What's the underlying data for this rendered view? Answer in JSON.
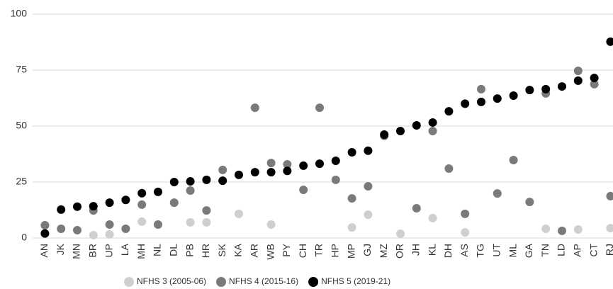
{
  "chart_data": {
    "type": "scatter",
    "categories": [
      "AN",
      "JK",
      "MN",
      "BR",
      "UP",
      "LA",
      "MH",
      "NL",
      "DL",
      "PB",
      "HR",
      "SK",
      "KA",
      "AR",
      "WB",
      "PY",
      "CH",
      "TR",
      "HP",
      "MP",
      "GJ",
      "MZ",
      "OR",
      "JH",
      "KL",
      "DH",
      "AS",
      "TG",
      "UT",
      "ML",
      "GA",
      "TN",
      "LD",
      "AP",
      "CT",
      "RJ"
    ],
    "series": [
      {
        "name": "NFHS 3 (2005-06)",
        "color": "#cfcfcf",
        "values": [
          null,
          null,
          null,
          1.3,
          1.6,
          null,
          7.3,
          null,
          null,
          7,
          7,
          null,
          10.8,
          null,
          6,
          null,
          null,
          null,
          null,
          4.7,
          10.4,
          null,
          1.9,
          null,
          8.9,
          null,
          2.5,
          null,
          null,
          null,
          null,
          4.1,
          null,
          3.8,
          null,
          4.4
        ]
      },
      {
        "name": "NFHS 4 (2015-16)",
        "color": "#7a7a7a",
        "values": [
          5.7,
          4.1,
          3.5,
          12.3,
          6,
          4.1,
          14.9,
          6,
          15.8,
          21.2,
          12.3,
          30.4,
          null,
          58.2,
          33.5,
          32.9,
          21.5,
          58.2,
          26,
          17.7,
          23.1,
          45.6,
          null,
          13.3,
          47.8,
          31,
          10.8,
          66.5,
          19.9,
          34.8,
          16.1,
          64.6,
          3.2,
          74.7,
          68.7,
          18.7
        ]
      },
      {
        "name": "NFHS 5 (2019-21)",
        "color": "#000000",
        "values": [
          2,
          12.7,
          14,
          14.2,
          15.8,
          17,
          20,
          20.6,
          25,
          25.3,
          26,
          25.6,
          28.2,
          29.4,
          29.4,
          30,
          32.3,
          33.2,
          34.5,
          38.3,
          39,
          46.2,
          47.8,
          50.3,
          51.6,
          56.6,
          60,
          60.8,
          62.3,
          63.6,
          66.1,
          66.5,
          67.7,
          70.3,
          71.5,
          87.7
        ]
      }
    ],
    "ylim": [
      0,
      100
    ],
    "yticks": [
      0,
      25,
      50,
      75,
      100
    ],
    "grid": true,
    "legend": "bottom"
  }
}
